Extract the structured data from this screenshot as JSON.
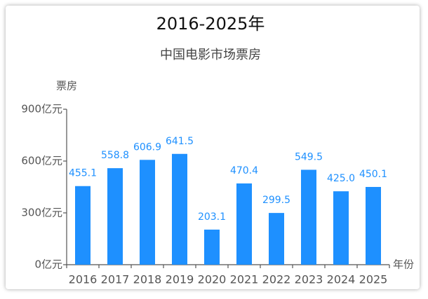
{
  "chart_data": {
    "type": "bar",
    "title": "2016-2025年",
    "subtitle": "中国电影市场票房",
    "y_label": "票房",
    "x_label": "年份",
    "categories": [
      "2016",
      "2017",
      "2018",
      "2019",
      "2020",
      "2021",
      "2022",
      "2023",
      "2024",
      "2025"
    ],
    "values": [
      455.1,
      558.8,
      606.9,
      641.5,
      203.1,
      470.4,
      299.5,
      549.5,
      425.0,
      450.1
    ],
    "value_labels": [
      "455.1",
      "558.8",
      "606.9",
      "641.5",
      "203.1",
      "470.4",
      "299.5",
      "549.5",
      "425.0",
      "450.1"
    ],
    "color": "#1e90ff",
    "ylim": [
      0,
      900
    ],
    "yticks": [
      {
        "value": 0,
        "label": "0亿元"
      },
      {
        "value": 300,
        "label": "300亿元"
      },
      {
        "value": 600,
        "label": "600亿元"
      },
      {
        "value": 900,
        "label": "900亿元"
      }
    ],
    "grid": false
  }
}
